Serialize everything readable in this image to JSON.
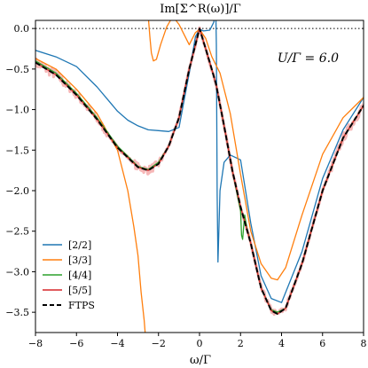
{
  "chart_data": {
    "type": "line",
    "title": "Im[Σ^R(ω)]/Γ",
    "xlabel": "ω/Γ",
    "ylabel": "",
    "annotation": "U/Γ = 6.0",
    "xlim": [
      -8,
      8
    ],
    "ylim": [
      -3.75,
      0.1
    ],
    "x_ticks": [
      -8,
      -6,
      -4,
      -2,
      0,
      2,
      4,
      6,
      8
    ],
    "y_ticks": [
      0.0,
      -0.5,
      -1.0,
      -1.5,
      -2.0,
      -2.5,
      -3.0,
      -3.5
    ],
    "x_tick_labels": [
      "−8",
      "−6",
      "−4",
      "−2",
      "0",
      "2",
      "4",
      "6",
      "8"
    ],
    "y_tick_labels": [
      "0.0",
      "−0.5",
      "−1.0",
      "−1.5",
      "−2.0",
      "−2.5",
      "−3.0",
      "−3.5"
    ],
    "reference_line": {
      "y": 0.0,
      "style": "dotted"
    },
    "legend_position": "bottom-left",
    "colors": {
      "s22": "#1f77b4",
      "s33": "#ff7f0e",
      "s44": "#2ca02c",
      "s55": "#d62728",
      "ftps": "#000000",
      "noise": "#f4aaaa"
    },
    "series": [
      {
        "name": "[2/2]",
        "color": "#1f77b4",
        "style": "solid",
        "x": [
          -8,
          -7,
          -6,
          -5,
          -4,
          -3.5,
          -3,
          -2.5,
          -2,
          -1.5,
          -1,
          -0.5,
          -0.2,
          0,
          0.2,
          0.5,
          0.7,
          0.78,
          0.82,
          0.86,
          0.9,
          1.0,
          1.2,
          1.5,
          2.0,
          2.5,
          3.0,
          3.5,
          4,
          5,
          6,
          7,
          8
        ],
        "y": [
          -0.27,
          -0.35,
          -0.47,
          -0.72,
          -1.02,
          -1.13,
          -1.2,
          -1.25,
          -1.26,
          -1.27,
          -1.22,
          -0.55,
          -0.1,
          -0.01,
          -0.03,
          -0.02,
          0.08,
          0.45,
          -0.2,
          -2.05,
          -2.88,
          -2.0,
          -1.65,
          -1.56,
          -1.62,
          -2.4,
          -3.05,
          -3.33,
          -3.38,
          -2.75,
          -1.85,
          -1.25,
          -0.85
        ]
      },
      {
        "name": "[3/3]",
        "color": "#ff7f0e",
        "style": "solid",
        "x": [
          -8,
          -7,
          -6,
          -5,
          -4,
          -3.5,
          -3.2,
          -3.0,
          -2.85,
          -2.7,
          -2.62,
          -2.6,
          null,
          -2.5,
          -2.42,
          -2.35,
          -2.25,
          -2.1,
          -1.9,
          -1.6,
          -1.3,
          -1.0,
          -0.5,
          -0.2,
          0,
          0.3,
          0.6,
          1.0,
          1.5,
          2.0,
          2.5,
          3.0,
          3.5,
          3.8,
          4.2,
          5,
          6,
          7,
          8
        ],
        "y": [
          -0.37,
          -0.5,
          -0.75,
          -1.05,
          -1.5,
          -2.0,
          -2.45,
          -2.8,
          -3.25,
          -3.6,
          -3.85,
          -3.95,
          null,
          0.15,
          -0.1,
          -0.3,
          -0.4,
          -0.38,
          -0.2,
          0.02,
          0.15,
          0.05,
          -0.2,
          -0.05,
          -0.01,
          -0.12,
          -0.35,
          -0.55,
          -1.05,
          -1.8,
          -2.5,
          -2.9,
          -3.08,
          -3.1,
          -2.95,
          -2.3,
          -1.55,
          -1.1,
          -0.85
        ]
      },
      {
        "name": "[4/4]",
        "color": "#2ca02c",
        "style": "solid",
        "x": [
          -8,
          -7,
          -6,
          -5,
          -4,
          -3,
          -2.5,
          -2,
          -1.5,
          -1,
          -0.5,
          0,
          0.5,
          0.8,
          1.2,
          1.6,
          2.0,
          2.05,
          2.1,
          2.2,
          2.3,
          2.5,
          3.0,
          3.5,
          3.8,
          4.2,
          5,
          6,
          7,
          8
        ],
        "y": [
          -0.4,
          -0.55,
          -0.8,
          -1.1,
          -1.45,
          -1.7,
          -1.74,
          -1.65,
          -1.45,
          -1.1,
          -0.5,
          0.0,
          -0.42,
          -0.68,
          -1.2,
          -1.75,
          -2.25,
          -2.55,
          -2.6,
          -2.3,
          -2.45,
          -2.65,
          -3.2,
          -3.47,
          -3.5,
          -3.45,
          -2.9,
          -2.0,
          -1.35,
          -0.95
        ]
      },
      {
        "name": "[5/5]",
        "color": "#d62728",
        "style": "solid",
        "x": [
          -8,
          -7,
          -6,
          -5,
          -4,
          -3,
          -2.5,
          -2,
          -1.5,
          -1,
          -0.5,
          0,
          0.5,
          0.8,
          1.2,
          1.6,
          2.0,
          2.5,
          3.0,
          3.5,
          3.8,
          4.2,
          5,
          6,
          7,
          8
        ],
        "y": [
          -0.42,
          -0.57,
          -0.82,
          -1.12,
          -1.47,
          -1.71,
          -1.75,
          -1.67,
          -1.45,
          -1.1,
          -0.5,
          0.0,
          -0.42,
          -0.68,
          -1.2,
          -1.75,
          -2.2,
          -2.65,
          -3.2,
          -3.48,
          -3.52,
          -3.45,
          -2.9,
          -2.0,
          -1.35,
          -0.95
        ]
      },
      {
        "name": "FTPS",
        "color": "#000000",
        "style": "dashed",
        "x": [
          -8,
          -7,
          -6,
          -5,
          -4,
          -3,
          -2.5,
          -2,
          -1.5,
          -1,
          -0.5,
          0,
          0.5,
          0.8,
          1.2,
          1.6,
          2.0,
          2.5,
          3.0,
          3.5,
          3.8,
          4.2,
          5,
          6,
          7,
          8
        ],
        "y": [
          -0.42,
          -0.57,
          -0.82,
          -1.12,
          -1.47,
          -1.71,
          -1.75,
          -1.67,
          -1.45,
          -1.1,
          -0.5,
          0.0,
          -0.42,
          -0.68,
          -1.2,
          -1.75,
          -2.2,
          -2.65,
          -3.2,
          -3.48,
          -3.52,
          -3.45,
          -2.9,
          -2.0,
          -1.35,
          -0.95
        ]
      }
    ]
  }
}
